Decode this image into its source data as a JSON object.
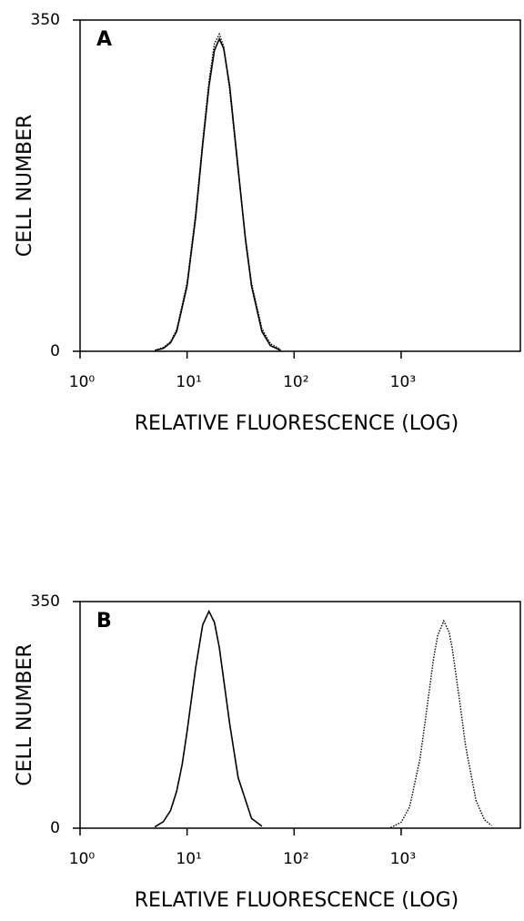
{
  "chart_data": [
    {
      "type": "line",
      "panel": "A",
      "ylabel": "CELL NUMBER",
      "xlabel": "RELATIVE FLUORESCENCE (LOG)",
      "log_x": true,
      "xlim": [
        1,
        13000
      ],
      "ylim": [
        0,
        350
      ],
      "xticks": [
        {
          "value": 1,
          "label": "10⁰"
        },
        {
          "value": 10,
          "label": "10¹"
        },
        {
          "value": 100,
          "label": "10²"
        },
        {
          "value": 1000,
          "label": "10³"
        }
      ],
      "yticks": [
        0,
        350
      ],
      "series": [
        {
          "color": "#000000",
          "style": "solid",
          "x": [
            5,
            6,
            7,
            8,
            10,
            12,
            14,
            16,
            18,
            20,
            22,
            25,
            30,
            35,
            40,
            50,
            60,
            75
          ],
          "values": [
            1,
            3,
            9,
            21,
            69,
            141,
            218,
            280,
            318,
            330,
            320,
            280,
            193,
            119,
            69,
            21,
            6,
            1
          ]
        },
        {
          "color": "#000000",
          "style": "dotted",
          "x": [
            5,
            6,
            7,
            8,
            10,
            12,
            14,
            16,
            18,
            20,
            22,
            25,
            30,
            35,
            40,
            50,
            60,
            75
          ],
          "values": [
            1,
            4,
            10,
            23,
            72,
            145,
            222,
            285,
            325,
            335,
            322,
            276,
            190,
            121,
            72,
            24,
            8,
            2
          ]
        }
      ]
    },
    {
      "type": "line",
      "panel": "B",
      "ylabel": "CELL NUMBER",
      "xlabel": "RELATIVE FLUORESCENCE (LOG)",
      "log_x": true,
      "xlim": [
        1,
        13000
      ],
      "ylim": [
        0,
        350
      ],
      "xticks": [
        {
          "value": 1,
          "label": "10⁰"
        },
        {
          "value": 10,
          "label": "10¹"
        },
        {
          "value": 100,
          "label": "10²"
        },
        {
          "value": 1000,
          "label": "10³"
        }
      ],
      "yticks": [
        0,
        350
      ],
      "series": [
        {
          "color": "#000000",
          "style": "solid",
          "x": [
            5,
            6,
            7,
            8,
            9,
            10,
            12,
            14,
            16,
            18,
            20,
            25,
            30,
            40,
            50
          ],
          "values": [
            2,
            10,
            27,
            57,
            99,
            149,
            247,
            314,
            335,
            318,
            279,
            161,
            78,
            15,
            3
          ]
        },
        {
          "color": "#000000",
          "style": "dotted",
          "x": [
            800,
            1000,
            1200,
            1500,
            1800,
            2000,
            2200,
            2500,
            2800,
            3000,
            3500,
            4000,
            5000,
            6000,
            7000
          ],
          "values": [
            1,
            9,
            33,
            107,
            203,
            260,
            298,
            320,
            303,
            278,
            199,
            127,
            43,
            13,
            4
          ]
        }
      ]
    }
  ]
}
